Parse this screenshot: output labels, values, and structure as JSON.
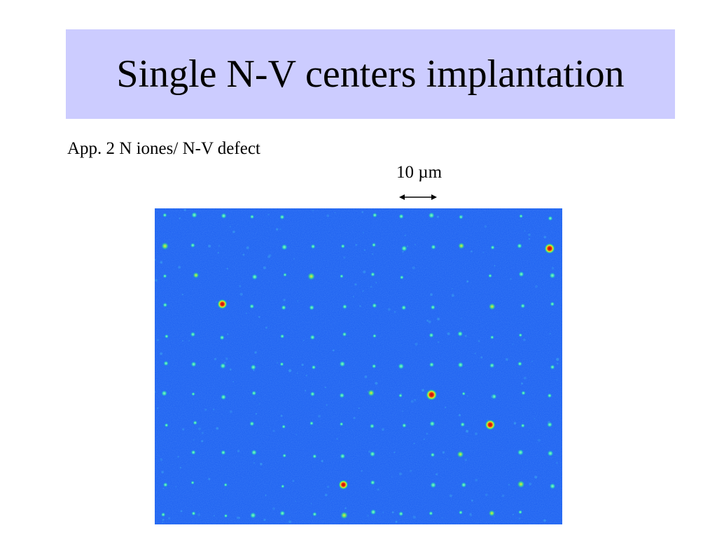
{
  "slide": {
    "title": "Single N-V centers implantation",
    "subtitle": "App. 2 N iones/ N-V defect",
    "scale_bar_label": "10 µm"
  },
  "colors": {
    "title_background": "#ccccff",
    "image_background": "#1a5cf0",
    "spot_core_hot": "#d81010",
    "spot_mid": "#f0e020",
    "spot_halo": "#20d090"
  }
}
